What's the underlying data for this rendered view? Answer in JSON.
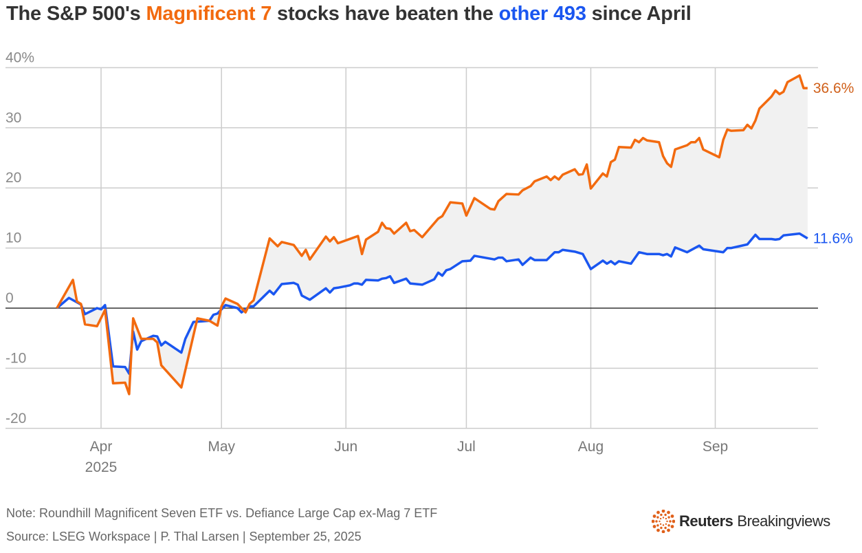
{
  "title": {
    "part1": "The S&P 500's ",
    "highlight1": "Magnificent 7",
    "part2": " stocks have beaten the ",
    "highlight2": "other 493",
    "part3": " since April"
  },
  "colors": {
    "mag7": "#f26a0f",
    "other493": "#1a56f0",
    "fill": "#f1f1f1",
    "grid": "#cccccc",
    "zero": "#333333"
  },
  "chart_data": {
    "type": "line",
    "title": "The S&P 500's Magnificent 7 stocks have beaten the other 493 since April",
    "xlabel": "",
    "ylabel": "",
    "ylim": [
      -20,
      40
    ],
    "yticks": [
      40,
      30,
      20,
      10,
      0,
      -10,
      -20
    ],
    "ytick_labels": [
      "40%",
      "30",
      "20",
      "10",
      "0",
      "-10",
      "-20"
    ],
    "xticks": [
      {
        "date": "2025-04-01",
        "label": "Apr",
        "sublabel": "2025"
      },
      {
        "date": "2025-05-01",
        "label": "May"
      },
      {
        "date": "2025-06-01",
        "label": "Jun"
      },
      {
        "date": "2025-07-01",
        "label": "Jul"
      },
      {
        "date": "2025-08-01",
        "label": "Aug"
      },
      {
        "date": "2025-09-01",
        "label": "Sep"
      }
    ],
    "grid": true,
    "area_between_series": true,
    "series": [
      {
        "key": "mag7",
        "end_label": "36.6%",
        "points": [
          [
            "2025-03-21",
            0
          ],
          [
            "2025-03-25",
            4.7
          ],
          [
            "2025-03-26",
            1.1
          ],
          [
            "2025-03-27",
            0.7
          ],
          [
            "2025-03-28",
            -2.7
          ],
          [
            "2025-03-31",
            -3.0
          ],
          [
            "2025-04-02",
            -0.3
          ],
          [
            "2025-04-04",
            -12.5
          ],
          [
            "2025-04-07",
            -12.4
          ],
          [
            "2025-04-08",
            -14.3
          ],
          [
            "2025-04-09",
            -1.7
          ],
          [
            "2025-04-11",
            -5.1
          ],
          [
            "2025-04-14",
            -5.1
          ],
          [
            "2025-04-15",
            -5.7
          ],
          [
            "2025-04-16",
            -9.5
          ],
          [
            "2025-04-21",
            -13.2
          ],
          [
            "2025-04-25",
            -1.7
          ],
          [
            "2025-04-28",
            -2.1
          ],
          [
            "2025-04-30",
            -2.9
          ],
          [
            "2025-05-01",
            0.3
          ],
          [
            "2025-05-02",
            1.6
          ],
          [
            "2025-05-05",
            0.7
          ],
          [
            "2025-05-07",
            -0.7
          ],
          [
            "2025-05-08",
            0.7
          ],
          [
            "2025-05-09",
            1.3
          ],
          [
            "2025-05-13",
            11.6
          ],
          [
            "2025-05-15",
            10.3
          ],
          [
            "2025-05-16",
            11.0
          ],
          [
            "2025-05-19",
            10.5
          ],
          [
            "2025-05-21",
            8.7
          ],
          [
            "2025-05-22",
            9.7
          ],
          [
            "2025-05-23",
            8.1
          ],
          [
            "2025-05-27",
            11.9
          ],
          [
            "2025-05-28",
            11.1
          ],
          [
            "2025-05-29",
            11.8
          ],
          [
            "2025-05-30",
            10.8
          ],
          [
            "2025-06-04",
            12.0
          ],
          [
            "2025-06-05",
            9.0
          ],
          [
            "2025-06-06",
            11.4
          ],
          [
            "2025-06-09",
            12.7
          ],
          [
            "2025-06-10",
            14.2
          ],
          [
            "2025-06-11",
            13.3
          ],
          [
            "2025-06-12",
            13.2
          ],
          [
            "2025-06-13",
            12.4
          ],
          [
            "2025-06-16",
            14.2
          ],
          [
            "2025-06-17",
            12.8
          ],
          [
            "2025-06-18",
            13.0
          ],
          [
            "2025-06-20",
            11.8
          ],
          [
            "2025-06-24",
            14.9
          ],
          [
            "2025-06-25",
            15.3
          ],
          [
            "2025-06-27",
            17.6
          ],
          [
            "2025-06-30",
            17.4
          ],
          [
            "2025-07-01",
            15.4
          ],
          [
            "2025-07-03",
            18.3
          ],
          [
            "2025-07-07",
            16.5
          ],
          [
            "2025-07-08",
            16.4
          ],
          [
            "2025-07-09",
            17.8
          ],
          [
            "2025-07-11",
            19.0
          ],
          [
            "2025-07-14",
            18.9
          ],
          [
            "2025-07-15",
            19.6
          ],
          [
            "2025-07-17",
            20.3
          ],
          [
            "2025-07-18",
            21.1
          ],
          [
            "2025-07-21",
            21.9
          ],
          [
            "2025-07-22",
            21.3
          ],
          [
            "2025-07-23",
            21.9
          ],
          [
            "2025-07-24",
            21.4
          ],
          [
            "2025-07-25",
            22.2
          ],
          [
            "2025-07-28",
            23.1
          ],
          [
            "2025-07-29",
            22.2
          ],
          [
            "2025-07-30",
            22.3
          ],
          [
            "2025-07-31",
            23.9
          ],
          [
            "2025-08-01",
            19.9
          ],
          [
            "2025-08-04",
            22.4
          ],
          [
            "2025-08-05",
            21.9
          ],
          [
            "2025-08-06",
            24.3
          ],
          [
            "2025-08-07",
            24.7
          ],
          [
            "2025-08-08",
            26.8
          ],
          [
            "2025-08-11",
            26.7
          ],
          [
            "2025-08-12",
            28.0
          ],
          [
            "2025-08-13",
            27.6
          ],
          [
            "2025-08-14",
            28.3
          ],
          [
            "2025-08-15",
            27.9
          ],
          [
            "2025-08-18",
            27.6
          ],
          [
            "2025-08-19",
            25.3
          ],
          [
            "2025-08-20",
            24.1
          ],
          [
            "2025-08-21",
            23.5
          ],
          [
            "2025-08-22",
            26.4
          ],
          [
            "2025-08-25",
            27.1
          ],
          [
            "2025-08-26",
            27.6
          ],
          [
            "2025-08-27",
            27.6
          ],
          [
            "2025-08-28",
            28.3
          ],
          [
            "2025-08-29",
            26.4
          ],
          [
            "2025-09-02",
            25.1
          ],
          [
            "2025-09-03",
            28.0
          ],
          [
            "2025-09-04",
            29.7
          ],
          [
            "2025-09-05",
            29.5
          ],
          [
            "2025-09-08",
            29.6
          ],
          [
            "2025-09-09",
            30.5
          ],
          [
            "2025-09-10",
            29.9
          ],
          [
            "2025-09-11",
            31.2
          ],
          [
            "2025-09-12",
            33.2
          ],
          [
            "2025-09-15",
            35.2
          ],
          [
            "2025-09-16",
            36.2
          ],
          [
            "2025-09-17",
            35.6
          ],
          [
            "2025-09-18",
            36.0
          ],
          [
            "2025-09-19",
            37.6
          ],
          [
            "2025-09-22",
            38.7
          ],
          [
            "2025-09-23",
            36.6
          ],
          [
            "2025-09-24",
            36.6
          ]
        ]
      },
      {
        "key": "other493",
        "end_label": "11.6%",
        "points": [
          [
            "2025-03-21",
            0
          ],
          [
            "2025-03-24",
            1.7
          ],
          [
            "2025-03-27",
            0.6
          ],
          [
            "2025-03-28",
            -1.0
          ],
          [
            "2025-03-31",
            0.0
          ],
          [
            "2025-04-01",
            -0.2
          ],
          [
            "2025-04-02",
            0.5
          ],
          [
            "2025-04-04",
            -9.7
          ],
          [
            "2025-04-07",
            -9.8
          ],
          [
            "2025-04-08",
            -10.9
          ],
          [
            "2025-04-09",
            -3.9
          ],
          [
            "2025-04-10",
            -6.9
          ],
          [
            "2025-04-11",
            -5.5
          ],
          [
            "2025-04-14",
            -4.6
          ],
          [
            "2025-04-15",
            -4.7
          ],
          [
            "2025-04-16",
            -6.2
          ],
          [
            "2025-04-17",
            -5.6
          ],
          [
            "2025-04-21",
            -7.4
          ],
          [
            "2025-04-22",
            -5.1
          ],
          [
            "2025-04-24",
            -2.3
          ],
          [
            "2025-04-28",
            -2.1
          ],
          [
            "2025-04-29",
            -1.1
          ],
          [
            "2025-04-30",
            -0.9
          ],
          [
            "2025-05-02",
            0.5
          ],
          [
            "2025-05-05",
            0.0
          ],
          [
            "2025-05-06",
            -0.7
          ],
          [
            "2025-05-08",
            0.3
          ],
          [
            "2025-05-09",
            0.3
          ],
          [
            "2025-05-13",
            2.9
          ],
          [
            "2025-05-14",
            2.3
          ],
          [
            "2025-05-16",
            4.0
          ],
          [
            "2025-05-19",
            4.2
          ],
          [
            "2025-05-20",
            3.9
          ],
          [
            "2025-05-21",
            2.1
          ],
          [
            "2025-05-23",
            1.4
          ],
          [
            "2025-05-27",
            3.3
          ],
          [
            "2025-05-28",
            2.6
          ],
          [
            "2025-05-29",
            3.3
          ],
          [
            "2025-05-30",
            3.4
          ],
          [
            "2025-06-02",
            3.8
          ],
          [
            "2025-06-03",
            4.1
          ],
          [
            "2025-06-04",
            4.1
          ],
          [
            "2025-06-05",
            3.9
          ],
          [
            "2025-06-06",
            4.7
          ],
          [
            "2025-06-09",
            4.6
          ],
          [
            "2025-06-10",
            4.9
          ],
          [
            "2025-06-11",
            5.0
          ],
          [
            "2025-06-12",
            5.3
          ],
          [
            "2025-06-13",
            4.2
          ],
          [
            "2025-06-16",
            4.9
          ],
          [
            "2025-06-17",
            4.1
          ],
          [
            "2025-06-20",
            3.9
          ],
          [
            "2025-06-23",
            4.8
          ],
          [
            "2025-06-24",
            5.9
          ],
          [
            "2025-06-25",
            5.4
          ],
          [
            "2025-06-26",
            6.3
          ],
          [
            "2025-06-27",
            6.5
          ],
          [
            "2025-06-30",
            7.8
          ],
          [
            "2025-07-02",
            7.9
          ],
          [
            "2025-07-03",
            8.7
          ],
          [
            "2025-07-08",
            8.1
          ],
          [
            "2025-07-09",
            8.4
          ],
          [
            "2025-07-10",
            8.4
          ],
          [
            "2025-07-11",
            7.8
          ],
          [
            "2025-07-14",
            8.1
          ],
          [
            "2025-07-15",
            7.2
          ],
          [
            "2025-07-17",
            8.4
          ],
          [
            "2025-07-18",
            8.0
          ],
          [
            "2025-07-21",
            8.0
          ],
          [
            "2025-07-23",
            9.3
          ],
          [
            "2025-07-24",
            9.3
          ],
          [
            "2025-07-25",
            9.7
          ],
          [
            "2025-07-28",
            9.4
          ],
          [
            "2025-07-30",
            9.0
          ],
          [
            "2025-08-01",
            6.5
          ],
          [
            "2025-08-04",
            7.9
          ],
          [
            "2025-08-05",
            7.4
          ],
          [
            "2025-08-06",
            7.8
          ],
          [
            "2025-08-07",
            7.3
          ],
          [
            "2025-08-08",
            7.8
          ],
          [
            "2025-08-11",
            7.4
          ],
          [
            "2025-08-13",
            9.3
          ],
          [
            "2025-08-15",
            9.0
          ],
          [
            "2025-08-18",
            9.0
          ],
          [
            "2025-08-19",
            8.8
          ],
          [
            "2025-08-20",
            9.0
          ],
          [
            "2025-08-21",
            8.6
          ],
          [
            "2025-08-22",
            10.1
          ],
          [
            "2025-08-25",
            9.3
          ],
          [
            "2025-08-28",
            10.4
          ],
          [
            "2025-08-29",
            9.8
          ],
          [
            "2025-09-03",
            9.3
          ],
          [
            "2025-09-04",
            10.0
          ],
          [
            "2025-09-05",
            10.0
          ],
          [
            "2025-09-09",
            10.6
          ],
          [
            "2025-09-11",
            12.2
          ],
          [
            "2025-09-12",
            11.5
          ],
          [
            "2025-09-15",
            11.5
          ],
          [
            "2025-09-16",
            11.4
          ],
          [
            "2025-09-17",
            11.5
          ],
          [
            "2025-09-18",
            12.1
          ],
          [
            "2025-09-22",
            12.4
          ],
          [
            "2025-09-24",
            11.6
          ]
        ]
      }
    ]
  },
  "footer": {
    "note": "Note: Roundhill Magnificent Seven ETF vs. Defiance Large Cap ex-Mag 7 ETF",
    "source": "Source: LSEG Workspace | P. Thal Larsen | September 25, 2025"
  },
  "logo": {
    "brand": "Reuters",
    "product": "Breakingviews",
    "icon": "reuters-dot-circle-icon"
  }
}
